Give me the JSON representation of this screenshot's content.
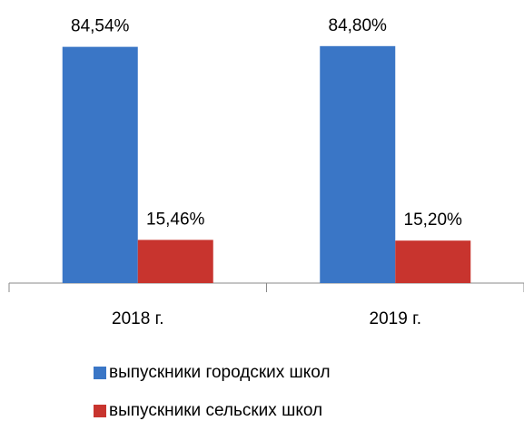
{
  "chart_data": {
    "type": "bar",
    "categories": [
      "2018 г.",
      "2019 г."
    ],
    "series": [
      {
        "name": "выпускники городских школ",
        "color": "#3a76c6",
        "values": [
          84.54,
          84.8
        ],
        "value_labels": [
          "84,54%",
          "84,80%"
        ]
      },
      {
        "name": "выпускники сельских школ",
        "color": "#c8342e",
        "values": [
          15.46,
          15.2
        ],
        "value_labels": [
          "15,46%",
          "15,20%"
        ]
      }
    ],
    "legend": "bottom"
  }
}
